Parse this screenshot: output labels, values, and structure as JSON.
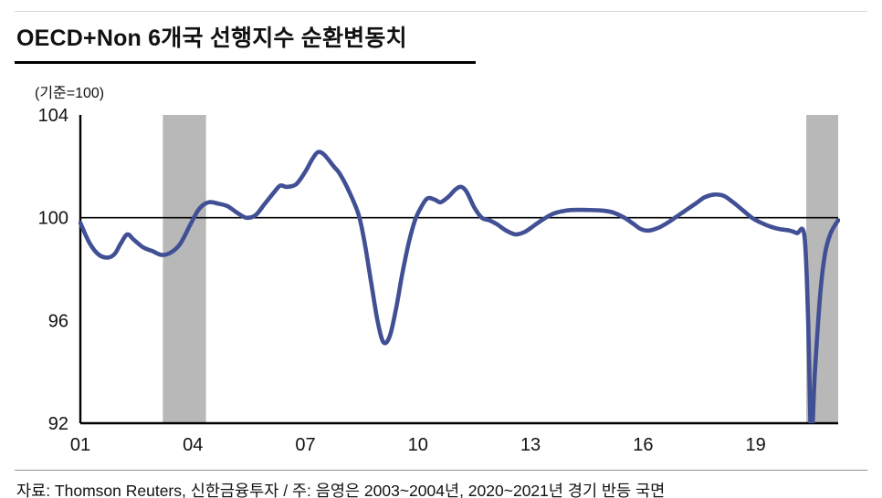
{
  "title": "OECD+Non 6개국  선행지수  순환변동치",
  "unit_label": "(기준=100)",
  "footer": {
    "source_note": "자료: Thomson Reuters, 신한금융투자 / 주: 음영은 2003~2004년, 2020~2021년 경기 반등 국면"
  },
  "colors": {
    "line": "#414f94",
    "band": "#b8b8b8",
    "axis": "#000000",
    "tick_text": "#111111"
  },
  "chart_data": {
    "type": "line",
    "title": "OECD+Non 6개국 선행지수 순환변동치",
    "xlabel": "",
    "ylabel": "(기준=100)",
    "x_axis": {
      "min": 2001,
      "max": 2021.2,
      "tick_years": [
        2001,
        2004,
        2007,
        2010,
        2013,
        2016,
        2019
      ],
      "tick_labels": [
        "01",
        "04",
        "07",
        "10",
        "13",
        "16",
        "19"
      ]
    },
    "y_axis": {
      "min": 92,
      "max": 104,
      "ticks": [
        92,
        96,
        100,
        104
      ]
    },
    "baseline": 100,
    "grid": false,
    "legend": "none",
    "shaded_regions": [
      {
        "from": 2003.2,
        "to": 2004.35
      },
      {
        "from": 2020.35,
        "to": 2021.2
      }
    ],
    "series": [
      {
        "name": "OECD+Non 6개국 선행지수 순환변동치",
        "points": [
          [
            2001.0,
            99.8
          ],
          [
            2001.25,
            99.0
          ],
          [
            2001.5,
            98.55
          ],
          [
            2001.75,
            98.45
          ],
          [
            2001.92,
            98.6
          ],
          [
            2002.08,
            99.0
          ],
          [
            2002.25,
            99.35
          ],
          [
            2002.42,
            99.15
          ],
          [
            2002.67,
            98.85
          ],
          [
            2002.92,
            98.7
          ],
          [
            2003.17,
            98.55
          ],
          [
            2003.42,
            98.65
          ],
          [
            2003.67,
            99.0
          ],
          [
            2003.92,
            99.7
          ],
          [
            2004.17,
            100.35
          ],
          [
            2004.42,
            100.6
          ],
          [
            2004.67,
            100.55
          ],
          [
            2004.92,
            100.45
          ],
          [
            2005.17,
            100.2
          ],
          [
            2005.42,
            100.0
          ],
          [
            2005.67,
            100.1
          ],
          [
            2005.92,
            100.55
          ],
          [
            2006.17,
            101.0
          ],
          [
            2006.33,
            101.25
          ],
          [
            2006.5,
            101.2
          ],
          [
            2006.75,
            101.3
          ],
          [
            2007.0,
            101.8
          ],
          [
            2007.17,
            102.25
          ],
          [
            2007.33,
            102.55
          ],
          [
            2007.5,
            102.45
          ],
          [
            2007.75,
            102.0
          ],
          [
            2007.92,
            101.7
          ],
          [
            2008.17,
            101.0
          ],
          [
            2008.42,
            100.1
          ],
          [
            2008.58,
            99.0
          ],
          [
            2008.75,
            97.5
          ],
          [
            2008.92,
            96.0
          ],
          [
            2009.08,
            95.15
          ],
          [
            2009.25,
            95.4
          ],
          [
            2009.42,
            96.5
          ],
          [
            2009.58,
            97.8
          ],
          [
            2009.75,
            99.0
          ],
          [
            2009.92,
            99.9
          ],
          [
            2010.08,
            100.4
          ],
          [
            2010.25,
            100.75
          ],
          [
            2010.45,
            100.7
          ],
          [
            2010.6,
            100.6
          ],
          [
            2010.8,
            100.8
          ],
          [
            2011.0,
            101.1
          ],
          [
            2011.15,
            101.2
          ],
          [
            2011.3,
            101.0
          ],
          [
            2011.5,
            100.4
          ],
          [
            2011.7,
            100.0
          ],
          [
            2011.9,
            99.9
          ],
          [
            2012.1,
            99.75
          ],
          [
            2012.35,
            99.5
          ],
          [
            2012.6,
            99.35
          ],
          [
            2012.85,
            99.45
          ],
          [
            2013.1,
            99.7
          ],
          [
            2013.35,
            99.95
          ],
          [
            2013.6,
            100.15
          ],
          [
            2013.85,
            100.25
          ],
          [
            2014.1,
            100.3
          ],
          [
            2014.5,
            100.3
          ],
          [
            2014.9,
            100.28
          ],
          [
            2015.2,
            100.2
          ],
          [
            2015.5,
            100.0
          ],
          [
            2015.75,
            99.75
          ],
          [
            2015.95,
            99.55
          ],
          [
            2016.15,
            99.5
          ],
          [
            2016.4,
            99.6
          ],
          [
            2016.65,
            99.8
          ],
          [
            2016.9,
            100.05
          ],
          [
            2017.15,
            100.3
          ],
          [
            2017.4,
            100.55
          ],
          [
            2017.65,
            100.8
          ],
          [
            2017.9,
            100.9
          ],
          [
            2018.15,
            100.85
          ],
          [
            2018.4,
            100.6
          ],
          [
            2018.65,
            100.3
          ],
          [
            2018.9,
            100.0
          ],
          [
            2019.15,
            99.8
          ],
          [
            2019.4,
            99.65
          ],
          [
            2019.65,
            99.55
          ],
          [
            2019.9,
            99.5
          ],
          [
            2020.1,
            99.4
          ],
          [
            2020.3,
            99.3
          ],
          [
            2020.4,
            96.0
          ],
          [
            2020.48,
            91.3
          ],
          [
            2020.58,
            94.0
          ],
          [
            2020.72,
            97.0
          ],
          [
            2020.85,
            98.6
          ],
          [
            2021.0,
            99.4
          ],
          [
            2021.2,
            99.9
          ]
        ]
      }
    ]
  }
}
